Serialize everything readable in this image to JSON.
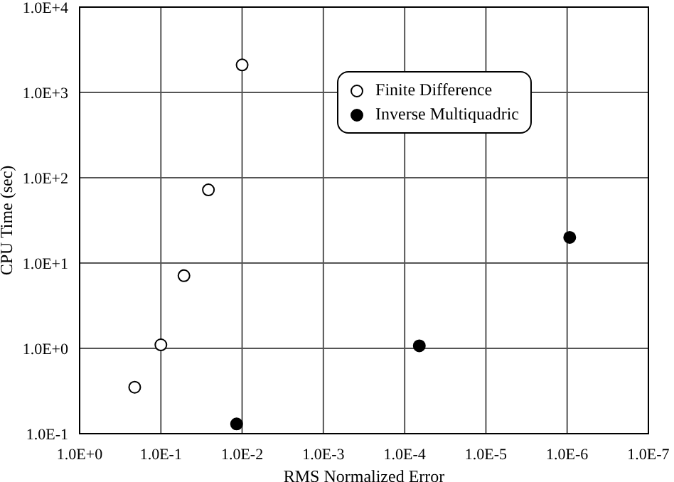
{
  "chart_data": {
    "type": "scatter",
    "xlabel": "RMS Normalized Error",
    "ylabel": "CPU Time (sec)",
    "log": "xy",
    "grid": true,
    "legend": "top right",
    "marker": "circle",
    "xlim": [
      1,
      1e-07
    ],
    "xticks": [
      {
        "value": 1,
        "label": "1.0E+0"
      },
      {
        "value": 0.1,
        "label": "1.0E-1"
      },
      {
        "value": 0.01,
        "label": "1.0E-2"
      },
      {
        "value": 0.001,
        "label": "1.0E-3"
      },
      {
        "value": 0.0001,
        "label": "1.0E-4"
      },
      {
        "value": 1e-05,
        "label": "1.0E-5"
      },
      {
        "value": 1e-06,
        "label": "1.0E-6"
      },
      {
        "value": 1e-07,
        "label": "1.0E-7"
      }
    ],
    "ylim": [
      0.1,
      10000
    ],
    "yticks": [
      {
        "value": 0.1,
        "label": "1.0E-1"
      },
      {
        "value": 1,
        "label": "1.0E+0"
      },
      {
        "value": 10,
        "label": "1.0E+1"
      },
      {
        "value": 100,
        "label": "1.0E+2"
      },
      {
        "value": 1000,
        "label": "1.0E+3"
      },
      {
        "value": 10000,
        "label": "1.0E+4"
      }
    ],
    "series": [
      {
        "name": "Finite Difference",
        "color": "#ffffff",
        "x": [
          0.21,
          0.1,
          0.052,
          0.026,
          0.01
        ],
        "values": [
          0.35,
          1.1,
          7.1,
          72,
          2100
        ]
      },
      {
        "name": "Inverse Multiquadric",
        "color": "#000000",
        "x": [
          0.0117,
          6.6e-05,
          9.3e-07
        ],
        "values": [
          0.13,
          1.07,
          20
        ]
      }
    ]
  }
}
